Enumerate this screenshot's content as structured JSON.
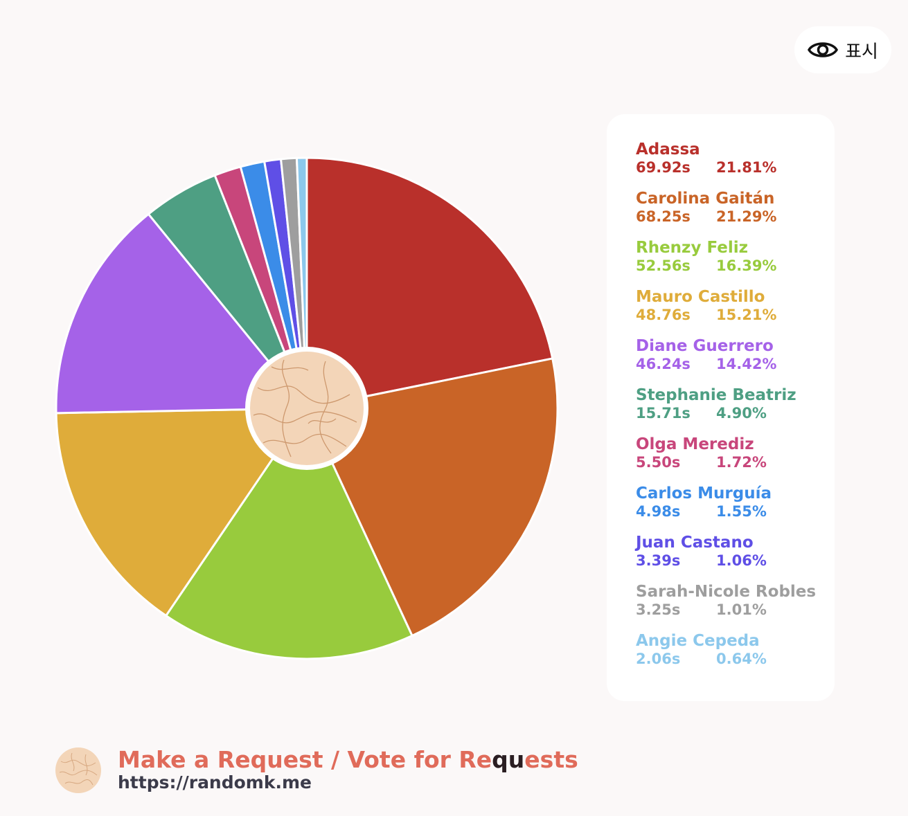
{
  "show_button": {
    "label": "표시",
    "icon": "eye-icon"
  },
  "chart_data": {
    "type": "pie",
    "title": "",
    "unit": "s",
    "series": [
      {
        "name": "Adassa",
        "time": "69.92s",
        "percent": "21.81%",
        "value": 21.81,
        "color": "#b9302b"
      },
      {
        "name": "Carolina Gaitán",
        "time": "68.25s",
        "percent": "21.29%",
        "value": 21.29,
        "color": "#c96427"
      },
      {
        "name": "Rhenzy Feliz",
        "time": "52.56s",
        "percent": "16.39%",
        "value": 16.39,
        "color": "#98cb3d"
      },
      {
        "name": "Mauro Castillo",
        "time": "48.76s",
        "percent": "15.21%",
        "value": 15.21,
        "color": "#dfac3a"
      },
      {
        "name": "Diane Guerrero",
        "time": "46.24s",
        "percent": "14.42%",
        "value": 14.42,
        "color": "#a562e8"
      },
      {
        "name": "Stephanie Beatriz",
        "time": "15.71s",
        "percent": "4.90%",
        "value": 4.9,
        "color": "#4e9f83"
      },
      {
        "name": "Olga Merediz",
        "time": "5.50s",
        "percent": "1.72%",
        "value": 1.72,
        "color": "#c8467b"
      },
      {
        "name": "Carlos Murguía",
        "time": "4.98s",
        "percent": "1.55%",
        "value": 1.55,
        "color": "#3b8ce8"
      },
      {
        "name": "Juan Castano",
        "time": "3.39s",
        "percent": "1.06%",
        "value": 1.06,
        "color": "#5f4fe6"
      },
      {
        "name": "Sarah-Nicole Robles",
        "time": "3.25s",
        "percent": "1.01%",
        "value": 1.01,
        "color": "#9e9e9e"
      },
      {
        "name": "Angie Cepeda",
        "time": "2.06s",
        "percent": "0.64%",
        "value": 0.64,
        "color": "#8cc8ec"
      }
    ],
    "center_color": "#f3d5b8",
    "center_line_color": "#c48a5c",
    "legend_position": "right"
  },
  "footer": {
    "title_part1": "Make a Request / Vote for Re",
    "title_highlight": "qu",
    "title_part2": "ests",
    "url": "https://randomk.me"
  }
}
